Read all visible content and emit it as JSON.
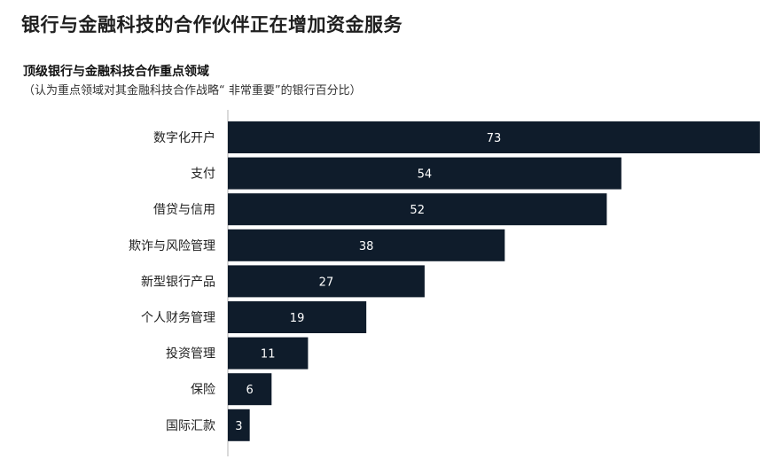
{
  "title": "银行与金融科技的合作伙伴正在增加资金服务",
  "subtitle": "顶级银行与金融科技合作重点领域",
  "note": "（认为重点领域对其金融科技合作战略“ 非常重要”的银行百分比）",
  "colors": {
    "bar": "#0f1c2b",
    "axis": "#b5b5b5",
    "value_text": "#ffffff"
  },
  "chart_data": {
    "type": "bar",
    "orientation": "horizontal",
    "categories": [
      "数字化开户",
      "支付",
      "借贷与信用",
      "欺诈与风险管理",
      "新型银行产品",
      "个人财务管理",
      "投资管理",
      "保险",
      "国际汇款"
    ],
    "values": [
      73,
      54,
      52,
      38,
      27,
      19,
      11,
      6,
      3
    ],
    "xlim": [
      0,
      73
    ],
    "xlabel": "",
    "ylabel": "",
    "grid": false,
    "legend": "none"
  }
}
